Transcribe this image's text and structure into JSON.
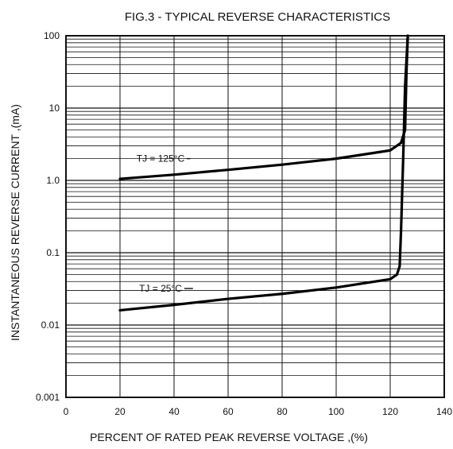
{
  "chart_data": {
    "type": "line",
    "title": "FIG.3 - TYPICAL REVERSE CHARACTERISTICS",
    "xlabel": "PERCENT OF RATED PEAK REVERSE VOLTAGE ,(%)",
    "ylabel": "INSTANTANEOUS REVERSE CURRENT ,(mA)",
    "xlim": [
      0,
      140
    ],
    "ylim": [
      0.001,
      100
    ],
    "y_scale": "log",
    "grid": true,
    "x_ticks": [
      0,
      20,
      40,
      60,
      80,
      100,
      120,
      140
    ],
    "x_tick_labels": [
      "0",
      "20",
      "40",
      "60",
      "80",
      "100",
      "120",
      "140"
    ],
    "y_ticks": [
      0.001,
      0.01,
      0.1,
      1,
      10,
      100
    ],
    "y_tick_labels": [
      "0.001",
      "0.01",
      "0.1",
      "1.0",
      "10",
      "100"
    ],
    "series": [
      {
        "name": "TJ = 125°C",
        "color": "#000000",
        "x": [
          20,
          40,
          60,
          80,
          100,
          120,
          124,
          125.5,
          126,
          126.5
        ],
        "y": [
          1.05,
          1.2,
          1.4,
          1.65,
          2.0,
          2.6,
          3.3,
          5,
          30,
          100
        ]
      },
      {
        "name": "TJ = 25°C",
        "color": "#000000",
        "x": [
          20,
          40,
          60,
          80,
          100,
          120,
          122.5,
          123.5,
          124,
          124.8,
          125.5,
          126.5
        ],
        "y": [
          0.016,
          0.019,
          0.023,
          0.027,
          0.033,
          0.043,
          0.05,
          0.065,
          0.2,
          2,
          20,
          100
        ]
      }
    ],
    "annotations": [
      {
        "text": "TJ = 125°C",
        "series": 0
      },
      {
        "text": "TJ = 25°C",
        "series": 1
      }
    ]
  }
}
